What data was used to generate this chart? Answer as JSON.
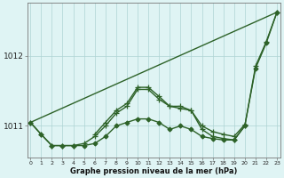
{
  "bg_color": "#dff4f4",
  "grid_color": "#aed4d4",
  "line_color": "#2d6228",
  "title": "Graphe pression niveau de la mer (hPa)",
  "ylabel_values": [
    1011,
    1012
  ],
  "x_ticks": [
    0,
    1,
    2,
    3,
    4,
    5,
    6,
    7,
    8,
    9,
    10,
    11,
    12,
    13,
    14,
    15,
    16,
    17,
    18,
    19,
    20,
    21,
    22,
    23
  ],
  "ylim": [
    1010.55,
    1012.75
  ],
  "xlim": [
    -0.3,
    23.3
  ],
  "series": [
    {
      "x": [
        0,
        23
      ],
      "y": [
        1011.05,
        1012.62
      ],
      "marker": null,
      "linewidth": 1.0
    },
    {
      "x": [
        0,
        1,
        2,
        3,
        4,
        5,
        6,
        7,
        8,
        9,
        10,
        11,
        12,
        13,
        14,
        15,
        16,
        17,
        18,
        19,
        20,
        21,
        22,
        23
      ],
      "y": [
        1011.05,
        1010.88,
        1010.72,
        1010.72,
        1010.72,
        1010.72,
        1010.75,
        1010.85,
        1011.0,
        1011.05,
        1011.1,
        1011.1,
        1011.05,
        1010.95,
        1011.0,
        1010.95,
        1010.85,
        1010.82,
        1010.8,
        1010.8,
        1011.0,
        1011.82,
        1012.18,
        1012.62
      ],
      "marker": "D",
      "markersize": 2.5,
      "linewidth": 1.0
    },
    {
      "x": [
        0,
        1,
        2,
        3,
        4,
        5,
        6,
        7,
        8,
        9,
        10,
        11,
        12,
        13,
        14,
        15,
        16,
        17,
        18,
        19,
        20,
        21,
        22,
        23
      ],
      "y": [
        1011.05,
        1010.88,
        1010.72,
        1010.72,
        1010.72,
        1010.75,
        1010.85,
        1011.0,
        1011.18,
        1011.28,
        1011.52,
        1011.52,
        1011.38,
        1011.28,
        1011.28,
        1011.22,
        1010.95,
        1010.85,
        1010.82,
        1010.8,
        1011.0,
        1011.85,
        1012.2,
        1012.62
      ],
      "marker": "+",
      "markersize": 4,
      "linewidth": 1.0
    },
    {
      "x": [
        6,
        7,
        8,
        9,
        10,
        11,
        12,
        13,
        14,
        15,
        16,
        17,
        18,
        19,
        20
      ],
      "y": [
        1010.88,
        1011.05,
        1011.22,
        1011.32,
        1011.55,
        1011.55,
        1011.42,
        1011.28,
        1011.25,
        1011.22,
        1011.0,
        1010.92,
        1010.88,
        1010.85,
        1011.02
      ],
      "marker": "+",
      "markersize": 4,
      "linewidth": 1.0
    }
  ]
}
